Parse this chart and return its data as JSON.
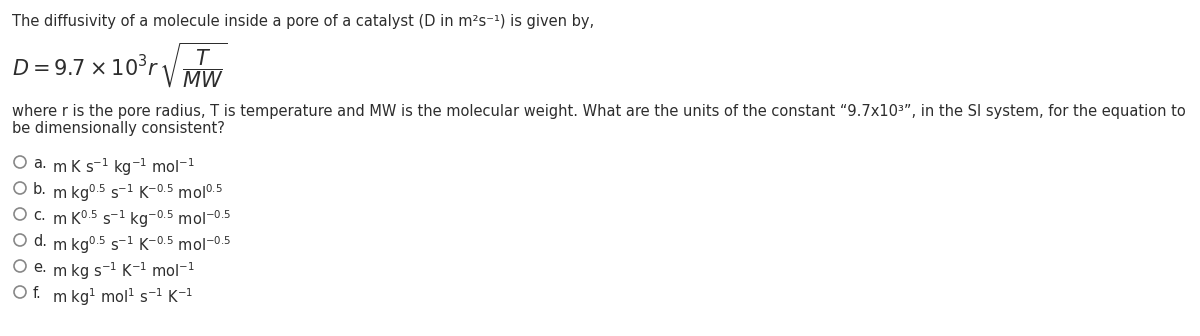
{
  "bg_color": "#ffffff",
  "text_color": "#2d2d2d",
  "title_line": "The diffusivity of a molecule inside a pore of a catalyst (D in m²s⁻¹) is given by,",
  "body_text": "where r is the pore radius, T is temperature and MW is the molecular weight. What are the units of the constant “9.7x10³”, in the SI system, for the equation to be dimensionally consistent?",
  "fs_title": 10.5,
  "fs_body": 10.5,
  "fs_option": 10.5,
  "fs_formula": 13,
  "option_letters": [
    "a",
    "b",
    "c",
    "d",
    "e",
    "f"
  ],
  "option_texts": [
    "m K s$^{-1}$ kg$^{-1}$ mol$^{-1}$",
    "m kg$^{0.5}$ s$^{-1}$ K$^{-0.5}$ mol$^{0.5}$",
    "m K$^{0.5}$ s$^{-1}$ kg$^{-0.5}$ mol$^{-0.5}$",
    "m kg$^{0.5}$ s$^{-1}$ K$^{-0.5}$ mol$^{-0.5}$",
    "m kg s$^{-1}$ K$^{-1}$ mol$^{-1}$",
    "m kg$^1$ mol$^1$ s$^{-1}$ K$^{-1}$"
  ]
}
